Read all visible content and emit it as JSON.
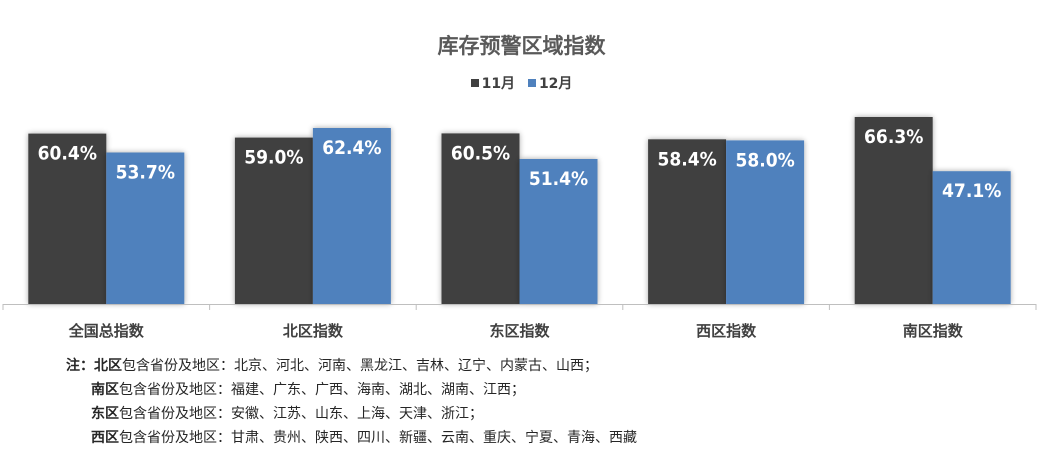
{
  "chart_data": {
    "type": "bar",
    "title": "库存预警区域指数",
    "categories": [
      "全国总指数",
      "北区指数",
      "东区指数",
      "西区指数",
      "南区指数"
    ],
    "series": [
      {
        "name": "11月",
        "color": "#404040",
        "values": [
          60.4,
          59.0,
          60.5,
          58.4,
          66.3
        ],
        "labels": [
          "60.4%",
          "59.0%",
          "60.5%",
          "58.4%",
          "66.3%"
        ]
      },
      {
        "name": "12月",
        "color": "#4f81bd",
        "values": [
          53.7,
          62.4,
          51.4,
          58.0,
          47.1
        ],
        "labels": [
          "53.7%",
          "62.4%",
          "51.4%",
          "58.0%",
          "47.1%"
        ]
      }
    ],
    "ylim": [
      0,
      66.3
    ],
    "grid": false,
    "legend_position": "top"
  },
  "notes": {
    "prefix": "注：",
    "rows": [
      {
        "region": "北区",
        "text": "包含省份及地区：北京、河北、河南、黑龙江、吉林、辽宁、内蒙古、山西；"
      },
      {
        "region": "南区",
        "text": "包含省份及地区：福建、广东、广西、海南、湖北、湖南、江西；"
      },
      {
        "region": "东区",
        "text": "包含省份及地区：安徽、江苏、山东、上海、天津、浙江；"
      },
      {
        "region": "西区",
        "text": "包含省份及地区：甘肃、贵州、陕西、四川、新疆、云南、重庆、宁夏、青海、西藏"
      }
    ]
  }
}
